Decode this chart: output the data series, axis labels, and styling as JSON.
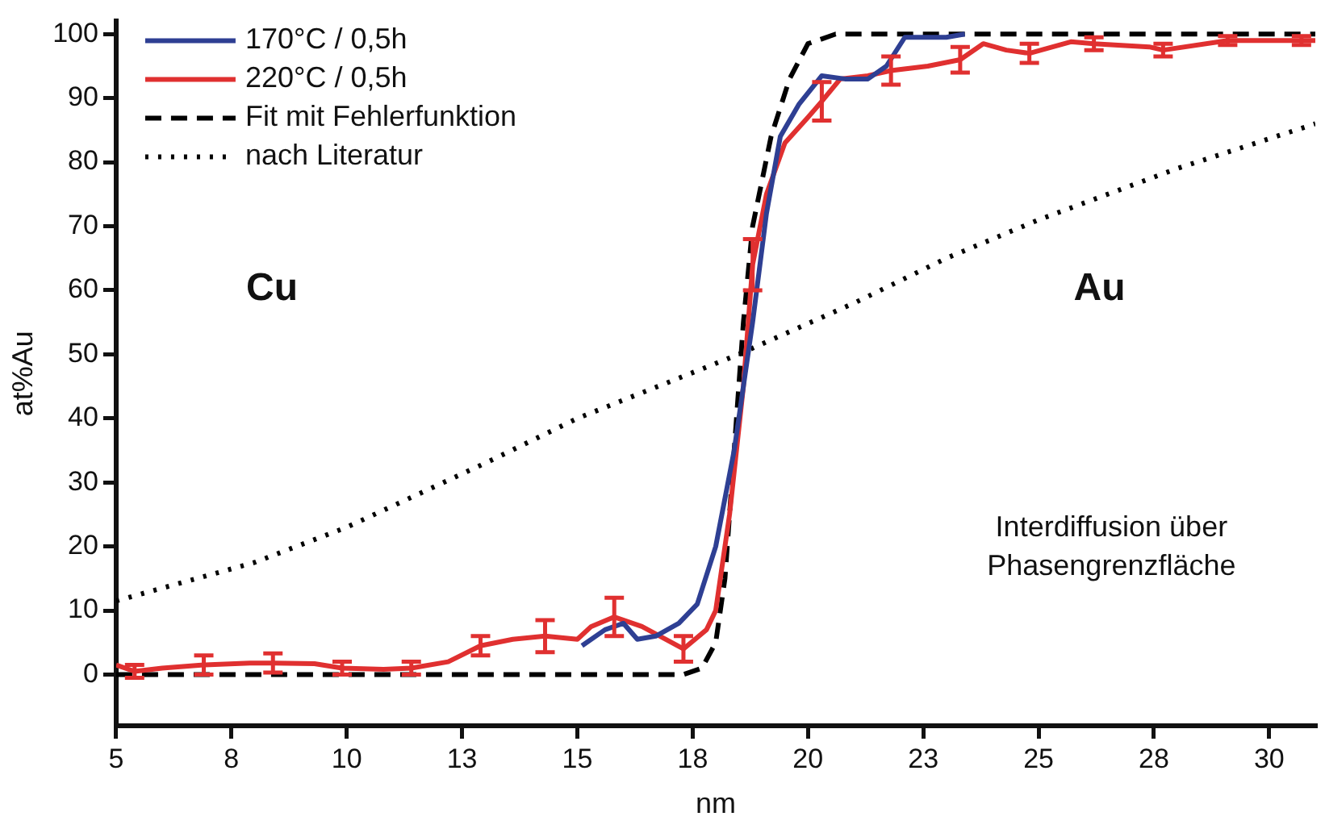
{
  "chart_data": {
    "type": "line",
    "xlabel": "nm",
    "ylabel": "at%Au",
    "xlim": [
      5,
      31
    ],
    "ylim": [
      -8,
      102
    ],
    "xticks": [
      5,
      {
        "value": 7.5,
        "label": "8"
      },
      10,
      {
        "value": 12.5,
        "label": "13"
      },
      15,
      {
        "value": 17.5,
        "label": "18"
      },
      20,
      {
        "value": 22.5,
        "label": "23"
      },
      25,
      {
        "value": 27.5,
        "label": "28"
      },
      30
    ],
    "yticks": [
      0,
      10,
      20,
      30,
      40,
      50,
      60,
      70,
      80,
      90,
      100
    ],
    "grid": false,
    "legend": "top left",
    "marker": "none",
    "annotations": [
      "Cu",
      "Au",
      "Interdiffusion über\nPhasengrenzfläche"
    ],
    "series": [
      {
        "name": "170°C / 0,5h",
        "color": "#2e3f93",
        "line_style": "solid",
        "x": [
          15.1,
          15.6,
          16.0,
          16.3,
          16.7,
          17.2,
          17.6,
          18.0,
          18.4,
          18.8,
          19.1,
          19.4,
          19.8,
          20.3,
          20.8,
          21.3,
          21.7,
          22.1,
          22.7,
          23.0,
          23.4
        ],
        "values": [
          4.5,
          7,
          8,
          5.5,
          6,
          8,
          11,
          20,
          35,
          55,
          72,
          84,
          89,
          93.5,
          93,
          93,
          95,
          99.5,
          99.5,
          99.5,
          100
        ]
      },
      {
        "name": "220°C / 0,5h",
        "color": "#e03030",
        "line_style": "solid",
        "x": [
          5,
          5.4,
          6.0,
          6.9,
          7.9,
          8.4,
          9.3,
          9.9,
          10.8,
          11.4,
          12.2,
          12.9,
          13.6,
          14.3,
          15.0,
          15.3,
          15.8,
          16.4,
          17.3,
          17.8,
          18.0,
          18.3,
          18.6,
          18.8,
          19.1,
          19.5,
          20.0,
          20.3,
          20.7,
          21.3,
          21.8,
          22.6,
          23.3,
          23.8,
          24.3,
          24.8,
          25.7,
          26.2,
          27.4,
          27.7,
          29.1,
          30.7,
          31
        ],
        "values": [
          1.5,
          0.5,
          1,
          1.5,
          1.8,
          1.8,
          1.7,
          1,
          0.8,
          1,
          2,
          4.5,
          5.5,
          6,
          5.5,
          7.5,
          9,
          7.5,
          4,
          7,
          10,
          25,
          45,
          64,
          75,
          83,
          87,
          89.5,
          93,
          93.5,
          94.3,
          95,
          96,
          98.5,
          97.5,
          97,
          98.8,
          98.5,
          98,
          97.5,
          99,
          99,
          99
        ],
        "errors": [
          null,
          1,
          null,
          1.5,
          null,
          1.5,
          null,
          1,
          null,
          1,
          null,
          1.5,
          null,
          2.5,
          null,
          null,
          3,
          null,
          2,
          null,
          null,
          null,
          null,
          4,
          null,
          null,
          null,
          3,
          null,
          null,
          2.2,
          null,
          2,
          null,
          null,
          1.5,
          null,
          1,
          null,
          1,
          0.7,
          0.7,
          null
        ]
      },
      {
        "name": "Fit mit Fehlerfunktion",
        "color": "#000000",
        "line_style": "dashed",
        "x": [
          5,
          17.3,
          17.7,
          18.0,
          18.2,
          18.4,
          18.6,
          18.8,
          19.2,
          19.6,
          20.0,
          20.6,
          31
        ],
        "values": [
          0,
          0,
          1,
          5,
          15,
          35,
          55,
          70,
          84,
          93,
          98.5,
          100,
          100
        ]
      },
      {
        "name": "nach Literatur",
        "color": "#000000",
        "line_style": "dotted",
        "x": [
          5,
          8,
          10,
          13,
          15,
          18.5,
          21,
          23,
          25,
          28,
          31
        ],
        "values": [
          11.5,
          17.5,
          23,
          33,
          40,
          50,
          58,
          65,
          71,
          79,
          86
        ]
      }
    ]
  }
}
